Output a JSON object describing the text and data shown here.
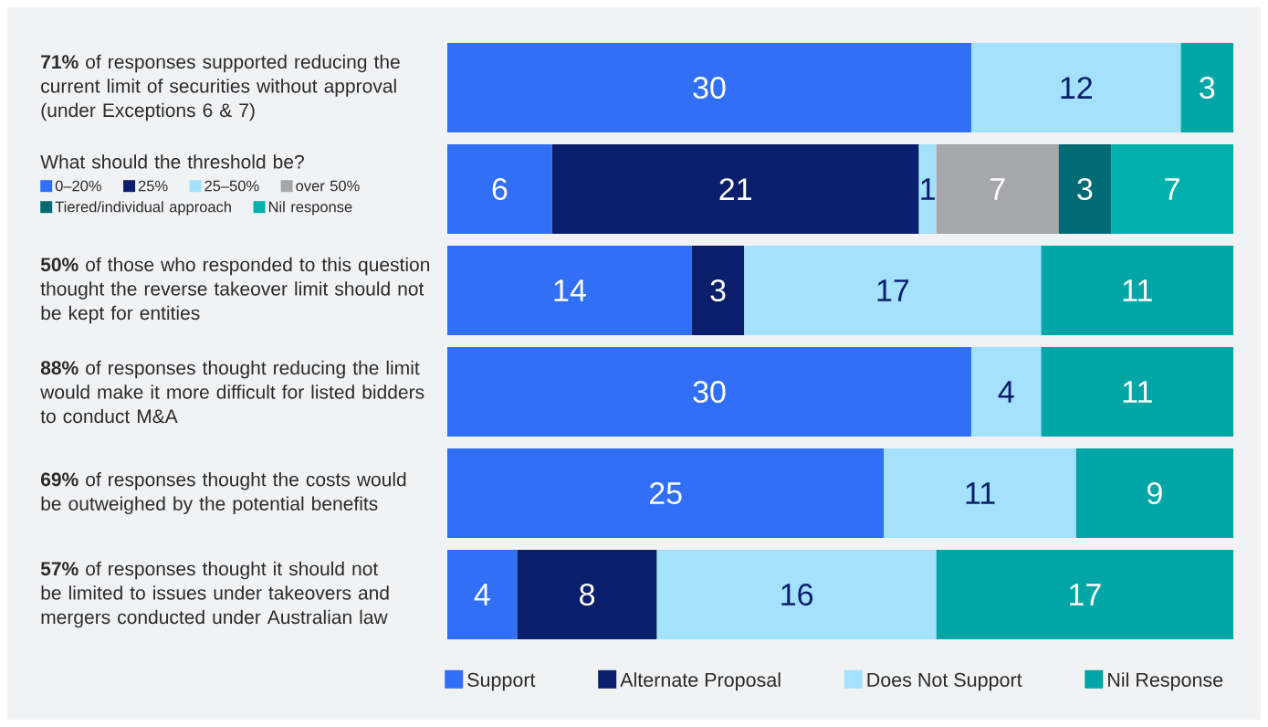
{
  "chart_data": {
    "type": "bar",
    "orientation": "horizontal",
    "stacked": true,
    "data_labels": true,
    "legend": "bottom",
    "categories": [
      "**71%** of responses supported reducing the current limit of securities without approval (under Exceptions 6 & 7)",
      "What should the threshold be?",
      "**50%** of those who responded to this question thought the reverse takeover limit should not be kept for entities",
      "**88%** of responses thought reducing the limit would make it more difficult for listed bidders to conduct M&A",
      "**69%** of responses thought the costs would be outweighed by the potential benefits",
      "**57%** of responses thought it should not be limited to issues under takeovers and mergers conducted under Australian law"
    ],
    "series": [
      {
        "name": "Support",
        "color": "#306ff6",
        "values": [
          30,
          6,
          14,
          30,
          25,
          4
        ]
      },
      {
        "name": "Alternate Proposal",
        "color": "#0a1f6b",
        "values": [
          null,
          21,
          3,
          null,
          null,
          8
        ]
      },
      {
        "name": "Does Not Support",
        "color": "#a3e1fd",
        "values": [
          12,
          1,
          17,
          4,
          11,
          16
        ]
      },
      {
        "name": "over 50%",
        "color": "#a6a7ab",
        "values": [
          null,
          7,
          null,
          null,
          null,
          null
        ]
      },
      {
        "name": "Tiered/individual approach",
        "color": "#006b73",
        "values": [
          null,
          3,
          null,
          null,
          null,
          null
        ]
      },
      {
        "name": "Nil Response",
        "color": "#00a6a6",
        "colors": [
          "#00a6a6",
          "#00b0aa",
          "#00a6a6",
          "#00a6a6",
          "#00a6a6",
          "#00a6a6"
        ],
        "values": [
          3,
          7,
          11,
          11,
          9,
          17
        ]
      }
    ],
    "annotations": [
      "0–20%",
      "25%",
      "25–50%",
      "Nil response"
    ]
  }
}
